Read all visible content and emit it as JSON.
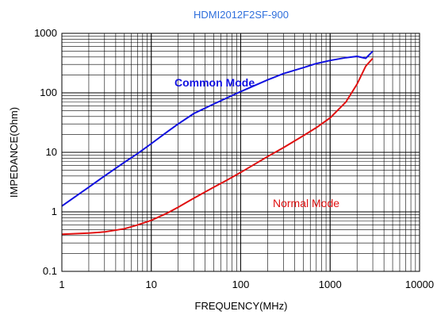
{
  "chart_data": {
    "type": "line",
    "title": "HDMI2012F2SF-900",
    "xlabel": "FREQUENCY(MHz)",
    "ylabel": "IMPEDANCE(Ohm)",
    "x_scale": "log",
    "y_scale": "log",
    "xlim": [
      1,
      10000
    ],
    "ylim": [
      0.1,
      1000
    ],
    "x_ticks": [
      "1",
      "10",
      "100",
      "1000",
      "10000"
    ],
    "y_ticks": [
      "0.1",
      "1",
      "10",
      "100",
      "1000"
    ],
    "grid": true,
    "title_color": "#2f6fdc",
    "series": [
      {
        "name": "Common Mode",
        "color": "#1010e0",
        "x": [
          1,
          2,
          3,
          5,
          7,
          10,
          15,
          20,
          30,
          50,
          70,
          100,
          200,
          300,
          500,
          700,
          1000,
          1500,
          2000,
          2500,
          3000
        ],
        "y": [
          1.25,
          2.6,
          4.0,
          6.8,
          9.5,
          14,
          22,
          30,
          45,
          65,
          82,
          105,
          165,
          210,
          265,
          310,
          350,
          390,
          410,
          380,
          500
        ]
      },
      {
        "name": "Normal Mode",
        "color": "#e01010",
        "x": [
          1,
          2,
          3,
          5,
          7,
          10,
          15,
          20,
          30,
          50,
          70,
          100,
          200,
          300,
          500,
          700,
          1000,
          1500,
          2000,
          2500,
          3000
        ],
        "y": [
          0.42,
          0.44,
          0.46,
          0.52,
          0.6,
          0.72,
          0.95,
          1.2,
          1.7,
          2.6,
          3.4,
          4.6,
          8.5,
          12,
          19,
          26,
          38,
          70,
          140,
          280,
          380
        ]
      }
    ]
  }
}
